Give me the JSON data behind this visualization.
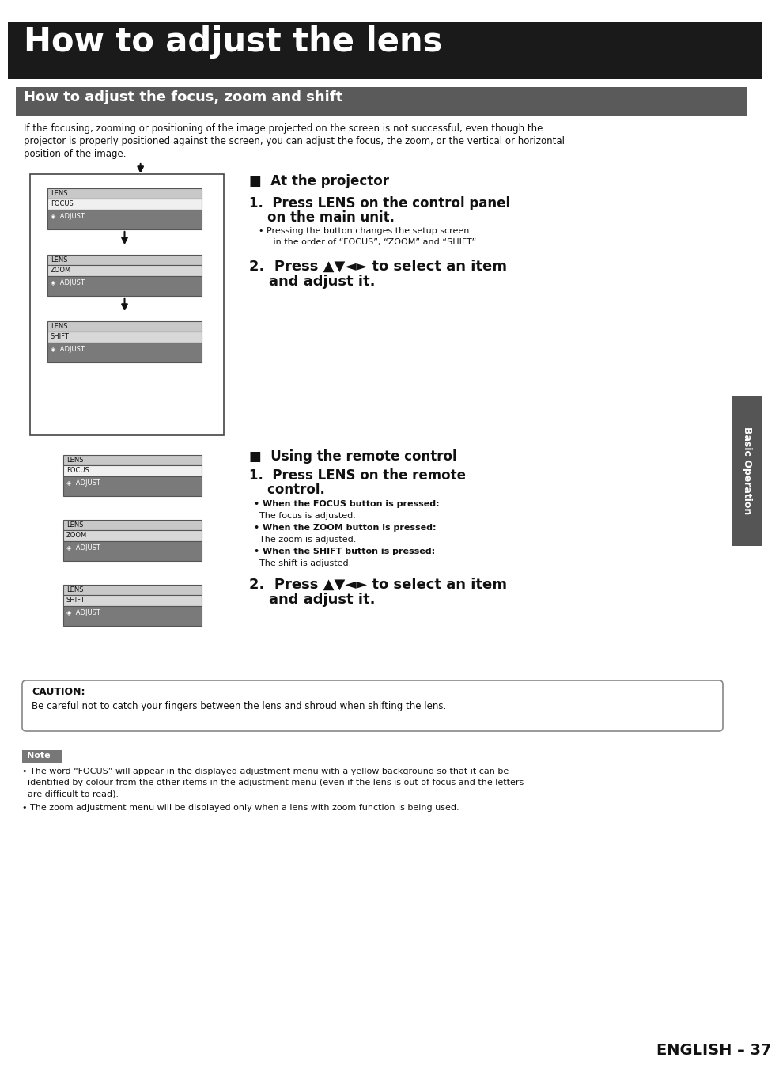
{
  "title": "How to adjust the lens",
  "title_bg": "#1a1a1a",
  "title_color": "#ffffff",
  "subtitle": "How to adjust the focus, zoom and shift",
  "subtitle_bg": "#5a5a5a",
  "subtitle_color": "#ffffff",
  "body_line1": "If the focusing, zooming or positioning of the image projected on the screen is not successful, even though the",
  "body_line2": "projector is properly positioned against the screen, you can adjust the focus, the zoom, or the vertical or horizontal",
  "body_line3": "position of the image.",
  "sec1_header": "■  At the projector",
  "step1a": "1.  Press LENS on the control panel",
  "step1b": "    on the main unit.",
  "step1_sub1": "• Pressing the button changes the setup screen",
  "step1_sub2": "   in the order of “FOCUS”, “ZOOM” and “SHIFT”.",
  "step2a": "2.  Press ▲▼◄► to select an item",
  "step2b": "    and adjust it.",
  "sec2_header": "■  Using the remote control",
  "step3a": "1.  Press LENS on the remote",
  "step3b": "    control.",
  "sub_focus_a": "• When the FOCUS button is pressed:",
  "sub_focus_b": "  The focus is adjusted.",
  "sub_zoom_a": "• When the ZOOM button is pressed:",
  "sub_zoom_b": "  The zoom is adjusted.",
  "sub_shift_a": "• When the SHIFT button is pressed:",
  "sub_shift_b": "  The shift is adjusted.",
  "step4a": "2.  Press ▲▼◄► to select an item",
  "step4b": "    and adjust it.",
  "caution_title": "CAUTION:",
  "caution_text": "Be careful not to catch your fingers between the lens and shroud when shifting the lens.",
  "note_title": "Note",
  "note1a": "• The word “FOCUS” will appear in the displayed adjustment menu with a yellow background so that it can be",
  "note1b": "  identified by colour from the other items in the adjustment menu (even if the lens is out of focus and the letters",
  "note1c": "  are difficult to read).",
  "note2": "• The zoom adjustment menu will be displayed only when a lens with zoom function is being used.",
  "sidebar_text": "Basic Operation",
  "page_text": "ENGLISH – 37"
}
